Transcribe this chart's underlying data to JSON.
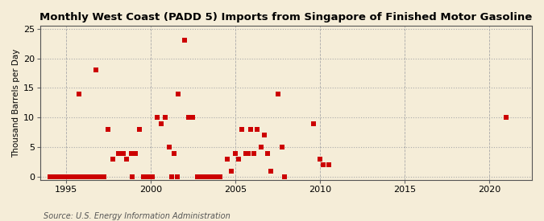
{
  "title": "Monthly West Coast (PADD 5) Imports from Singapore of Finished Motor Gasoline",
  "ylabel": "Thousand Barrels per Day",
  "source": "Source: U.S. Energy Information Administration",
  "background_color": "#f5edd8",
  "plot_background_color": "#f5edd8",
  "marker_color": "#cc0000",
  "marker_size": 5,
  "xlim": [
    1993.5,
    2022.5
  ],
  "ylim": [
    -0.5,
    25.5
  ],
  "xticks": [
    1995,
    2000,
    2005,
    2010,
    2015,
    2020
  ],
  "yticks": [
    0,
    5,
    10,
    15,
    20,
    25
  ],
  "grid_color": "#aaaaaa",
  "points": [
    [
      1995.75,
      14
    ],
    [
      1996.75,
      18
    ],
    [
      1997.5,
      8
    ],
    [
      1997.75,
      3
    ],
    [
      1998.1,
      4
    ],
    [
      1998.4,
      4
    ],
    [
      1998.6,
      3
    ],
    [
      1998.85,
      4
    ],
    [
      1999.1,
      4
    ],
    [
      1999.35,
      8
    ],
    [
      2000.4,
      10
    ],
    [
      2000.6,
      9
    ],
    [
      2000.85,
      10
    ],
    [
      2001.1,
      5
    ],
    [
      2001.4,
      4
    ],
    [
      2001.6,
      14
    ],
    [
      2002.0,
      23
    ],
    [
      2002.25,
      10
    ],
    [
      2002.5,
      10
    ],
    [
      2004.5,
      3
    ],
    [
      2004.75,
      1
    ],
    [
      2005.0,
      4
    ],
    [
      2005.2,
      3
    ],
    [
      2005.4,
      8
    ],
    [
      2005.6,
      4
    ],
    [
      2005.75,
      4
    ],
    [
      2005.9,
      8
    ],
    [
      2006.1,
      4
    ],
    [
      2006.3,
      8
    ],
    [
      2006.5,
      5
    ],
    [
      2006.7,
      7
    ],
    [
      2006.9,
      4
    ],
    [
      2007.1,
      1
    ],
    [
      2007.5,
      14
    ],
    [
      2007.75,
      5
    ],
    [
      2007.9,
      0
    ],
    [
      2009.6,
      9
    ],
    [
      2010.0,
      3
    ],
    [
      2010.2,
      2
    ],
    [
      2010.5,
      2
    ],
    [
      2021.0,
      10
    ],
    [
      1994.08,
      0
    ],
    [
      1994.25,
      0
    ],
    [
      1994.42,
      0
    ],
    [
      1994.58,
      0
    ],
    [
      1994.75,
      0
    ],
    [
      1994.92,
      0
    ],
    [
      1995.08,
      0
    ],
    [
      1995.25,
      0
    ],
    [
      1995.42,
      0
    ],
    [
      1995.58,
      0
    ],
    [
      1995.75,
      0
    ],
    [
      1995.92,
      0
    ],
    [
      1996.08,
      0
    ],
    [
      1996.25,
      0
    ],
    [
      1996.42,
      0
    ],
    [
      1996.58,
      0
    ],
    [
      1996.75,
      0
    ],
    [
      1996.92,
      0
    ],
    [
      1997.08,
      0
    ],
    [
      1997.25,
      0
    ],
    [
      1998.92,
      0
    ],
    [
      1999.58,
      0
    ],
    [
      1999.75,
      0
    ],
    [
      1999.92,
      0
    ],
    [
      2000.08,
      0
    ],
    [
      2001.25,
      0
    ],
    [
      2001.58,
      0
    ],
    [
      2002.75,
      0
    ],
    [
      2002.92,
      0
    ],
    [
      2003.08,
      0
    ],
    [
      2003.25,
      0
    ],
    [
      2003.42,
      0
    ],
    [
      2003.58,
      0
    ],
    [
      2003.75,
      0
    ],
    [
      2003.92,
      0
    ],
    [
      2004.08,
      0
    ]
  ]
}
